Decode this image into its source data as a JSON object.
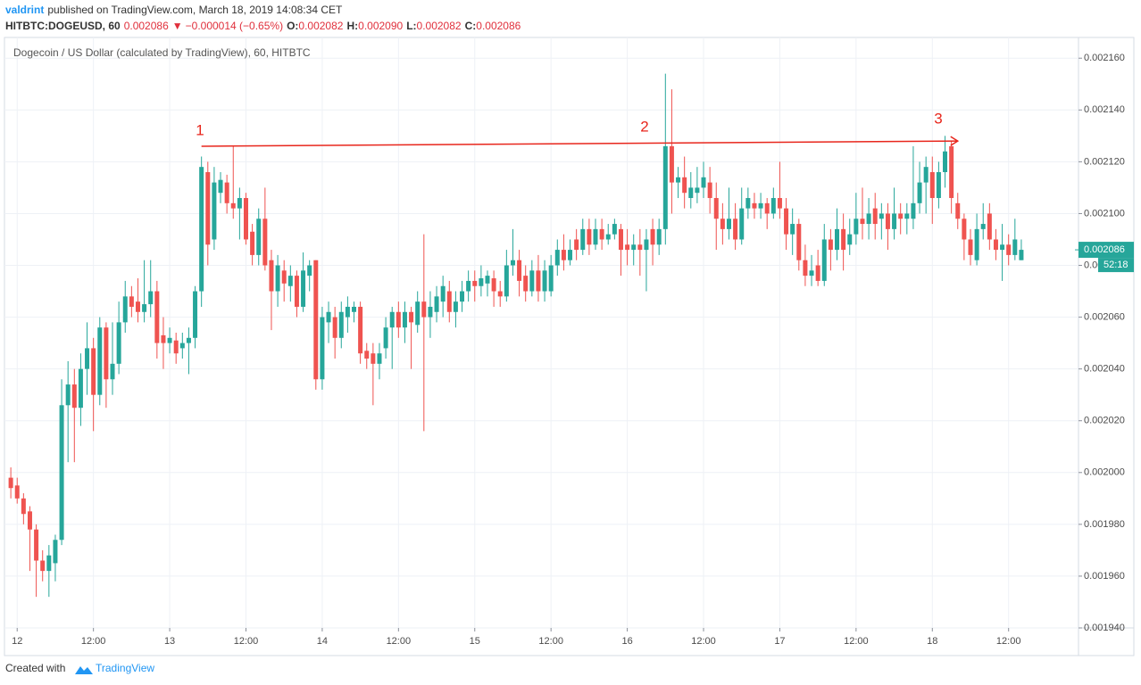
{
  "header": {
    "author": "valdrint",
    "published": "published on TradingView.com, March 18, 2019 14:08:34 CET",
    "symbol": "HITBTC:DOGEUSD, 60",
    "price": "0.002086",
    "arrow": "▼",
    "change": "−0.000014 (−0.65%)",
    "quote": [
      [
        "O:",
        "0.002082"
      ],
      [
        "H:",
        "0.002090"
      ],
      [
        "L:",
        "0.002082"
      ],
      [
        "C:",
        "0.002086"
      ]
    ]
  },
  "footer": {
    "created": "Created with",
    "brand": "TradingView"
  },
  "chart_data": {
    "type": "candlestick",
    "title": "Dogecoin / US Dollar (calculated by TradingView), 60, HITBTC",
    "up_color": "#26a69a",
    "down_color": "#ef5350",
    "grid": true,
    "xlim": [
      -1,
      168
    ],
    "xticks": [
      {
        "value": 1,
        "label": "12"
      },
      {
        "value": 13,
        "label": "12:00"
      },
      {
        "value": 25,
        "label": "13"
      },
      {
        "value": 37,
        "label": "12:00"
      },
      {
        "value": 49,
        "label": "14"
      },
      {
        "value": 61,
        "label": "12:00"
      },
      {
        "value": 73,
        "label": "15"
      },
      {
        "value": 85,
        "label": "12:00"
      },
      {
        "value": 97,
        "label": "16"
      },
      {
        "value": 109,
        "label": "12:00"
      },
      {
        "value": 121,
        "label": "17"
      },
      {
        "value": 133,
        "label": "12:00"
      },
      {
        "value": 145,
        "label": "18"
      },
      {
        "value": 157,
        "label": "12:00"
      }
    ],
    "ylim": [
      0.00194,
      0.002168
    ],
    "yticks": [
      {
        "value": 0.00194,
        "label": "0.001940"
      },
      {
        "value": 0.00196,
        "label": "0.001960"
      },
      {
        "value": 0.00198,
        "label": "0.001980"
      },
      {
        "value": 0.002,
        "label": "0.002000"
      },
      {
        "value": 0.00202,
        "label": "0.002020"
      },
      {
        "value": 0.00204,
        "label": "0.002040"
      },
      {
        "value": 0.00206,
        "label": "0.002060"
      },
      {
        "value": 0.00208,
        "label": "0.002080"
      },
      {
        "value": 0.0021,
        "label": "0.002100"
      },
      {
        "value": 0.00212,
        "label": "0.002120"
      },
      {
        "value": 0.00214,
        "label": "0.002140"
      },
      {
        "value": 0.00216,
        "label": "0.002160"
      }
    ],
    "last_price": {
      "value": 0.002086,
      "label": "0.002086"
    },
    "countdown": "52:18",
    "trendline": {
      "color": "#e8261c",
      "from": [
        30,
        0.002126
      ],
      "to": [
        149,
        0.002128
      ]
    },
    "annotations": [
      "1",
      "2",
      "3"
    ],
    "ohlc": [
      [
        0.001998,
        0.002002,
        0.00199,
        0.001994
      ],
      [
        0.001995,
        0.001998,
        0.001988,
        0.00199
      ],
      [
        0.00199,
        0.001992,
        0.00198,
        0.001984
      ],
      [
        0.001985,
        0.001987,
        0.001962,
        0.001978
      ],
      [
        0.001978,
        0.00198,
        0.001952,
        0.001966
      ],
      [
        0.001966,
        0.00197,
        0.001958,
        0.001962
      ],
      [
        0.001962,
        0.001972,
        0.001952,
        0.001968
      ],
      [
        0.001965,
        0.001976,
        0.001958,
        0.001974
      ],
      [
        0.001974,
        0.002036,
        0.001972,
        0.002026
      ],
      [
        0.002026,
        0.002043,
        0.002004,
        0.002034
      ],
      [
        0.002034,
        0.00204,
        0.002004,
        0.002025
      ],
      [
        0.002025,
        0.002046,
        0.002018,
        0.00204
      ],
      [
        0.00204,
        0.002058,
        0.00203,
        0.002048
      ],
      [
        0.002048,
        0.002052,
        0.002016,
        0.00203
      ],
      [
        0.00203,
        0.00206,
        0.002026,
        0.002056
      ],
      [
        0.002056,
        0.002058,
        0.002025,
        0.002036
      ],
      [
        0.002036,
        0.002058,
        0.00203,
        0.002042
      ],
      [
        0.002042,
        0.002066,
        0.002038,
        0.002058
      ],
      [
        0.002058,
        0.002074,
        0.002054,
        0.002068
      ],
      [
        0.002068,
        0.002072,
        0.00206,
        0.002064
      ],
      [
        0.002066,
        0.002075,
        0.002058,
        0.002062
      ],
      [
        0.002062,
        0.002082,
        0.002058,
        0.002065
      ],
      [
        0.002065,
        0.002082,
        0.00206,
        0.00207
      ],
      [
        0.00207,
        0.002074,
        0.002044,
        0.00205
      ],
      [
        0.002053,
        0.00206,
        0.00204,
        0.00205
      ],
      [
        0.00205,
        0.002056,
        0.002046,
        0.002052
      ],
      [
        0.002051,
        0.002054,
        0.002042,
        0.002046
      ],
      [
        0.002048,
        0.002054,
        0.002044,
        0.00205
      ],
      [
        0.00205,
        0.002056,
        0.002038,
        0.002052
      ],
      [
        0.002052,
        0.002072,
        0.002048,
        0.00207
      ],
      [
        0.00207,
        0.002122,
        0.002064,
        0.002118
      ],
      [
        0.002116,
        0.00212,
        0.00208,
        0.002088
      ],
      [
        0.00209,
        0.002118,
        0.002086,
        0.002112
      ],
      [
        0.002108,
        0.002116,
        0.002104,
        0.002113
      ],
      [
        0.002112,
        0.002115,
        0.0021,
        0.002104
      ],
      [
        0.002104,
        0.002126,
        0.002098,
        0.002102
      ],
      [
        0.002102,
        0.00211,
        0.00209,
        0.002106
      ],
      [
        0.002106,
        0.002108,
        0.002088,
        0.00209
      ],
      [
        0.002093,
        0.002096,
        0.00208,
        0.002084
      ],
      [
        0.002084,
        0.002102,
        0.00208,
        0.002098
      ],
      [
        0.002098,
        0.00211,
        0.002078,
        0.00208
      ],
      [
        0.002082,
        0.002086,
        0.002055,
        0.00207
      ],
      [
        0.00207,
        0.002084,
        0.002064,
        0.00208
      ],
      [
        0.002078,
        0.002082,
        0.002066,
        0.002073
      ],
      [
        0.002072,
        0.00208,
        0.002066,
        0.002076
      ],
      [
        0.002076,
        0.002078,
        0.00206,
        0.002064
      ],
      [
        0.002064,
        0.002085,
        0.002062,
        0.002078
      ],
      [
        0.002076,
        0.002082,
        0.00207,
        0.00208
      ],
      [
        0.002082,
        0.002082,
        0.002032,
        0.002036
      ],
      [
        0.002036,
        0.002064,
        0.002032,
        0.00206
      ],
      [
        0.002058,
        0.002066,
        0.00205,
        0.002062
      ],
      [
        0.00206,
        0.002064,
        0.002044,
        0.002052
      ],
      [
        0.002052,
        0.002066,
        0.002048,
        0.002062
      ],
      [
        0.00206,
        0.002068,
        0.002054,
        0.002064
      ],
      [
        0.002062,
        0.002066,
        0.002058,
        0.002064
      ],
      [
        0.002064,
        0.002066,
        0.002042,
        0.002046
      ],
      [
        0.002047,
        0.00205,
        0.00204,
        0.002044
      ],
      [
        0.002046,
        0.00205,
        0.002026,
        0.002042
      ],
      [
        0.002042,
        0.00205,
        0.002036,
        0.002046
      ],
      [
        0.002048,
        0.00206,
        0.002044,
        0.002056
      ],
      [
        0.002056,
        0.002064,
        0.00204,
        0.002062
      ],
      [
        0.002062,
        0.002066,
        0.002052,
        0.002056
      ],
      [
        0.002056,
        0.002066,
        0.00205,
        0.002062
      ],
      [
        0.002062,
        0.002064,
        0.00204,
        0.002058
      ],
      [
        0.002057,
        0.00207,
        0.002054,
        0.002066
      ],
      [
        0.002066,
        0.002092,
        0.002016,
        0.00206
      ],
      [
        0.00206,
        0.00207,
        0.002052,
        0.002064
      ],
      [
        0.002062,
        0.002072,
        0.002058,
        0.002068
      ],
      [
        0.002066,
        0.002076,
        0.00206,
        0.002072
      ],
      [
        0.00207,
        0.002074,
        0.002058,
        0.002062
      ],
      [
        0.002062,
        0.00207,
        0.002056,
        0.002066
      ],
      [
        0.002066,
        0.002074,
        0.002062,
        0.00207
      ],
      [
        0.00207,
        0.002078,
        0.002066,
        0.002074
      ],
      [
        0.002074,
        0.002078,
        0.002066,
        0.002072
      ],
      [
        0.002072,
        0.00208,
        0.002068,
        0.002075
      ],
      [
        0.002073,
        0.002078,
        0.002068,
        0.002076
      ],
      [
        0.002075,
        0.002078,
        0.002064,
        0.00207
      ],
      [
        0.00207,
        0.002074,
        0.002064,
        0.002068
      ],
      [
        0.002068,
        0.002086,
        0.002066,
        0.00208
      ],
      [
        0.00208,
        0.002094,
        0.002076,
        0.002082
      ],
      [
        0.002082,
        0.002086,
        0.002068,
        0.002074
      ],
      [
        0.002076,
        0.00208,
        0.002066,
        0.00207
      ],
      [
        0.00207,
        0.002082,
        0.002068,
        0.002078
      ],
      [
        0.002078,
        0.002084,
        0.002066,
        0.00207
      ],
      [
        0.00207,
        0.002082,
        0.002066,
        0.002078
      ],
      [
        0.00207,
        0.002084,
        0.002068,
        0.00208
      ],
      [
        0.00208,
        0.00209,
        0.002076,
        0.002086
      ],
      [
        0.002086,
        0.002092,
        0.002078,
        0.002082
      ],
      [
        0.002082,
        0.00209,
        0.00208,
        0.002086
      ],
      [
        0.00209,
        0.002094,
        0.002082,
        0.002086
      ],
      [
        0.002086,
        0.002098,
        0.002084,
        0.002094
      ],
      [
        0.002094,
        0.002098,
        0.002084,
        0.002088
      ],
      [
        0.002088,
        0.002098,
        0.002086,
        0.002094
      ],
      [
        0.002094,
        0.002098,
        0.002086,
        0.00209
      ],
      [
        0.00209,
        0.002096,
        0.002088,
        0.002092
      ],
      [
        0.002092,
        0.002098,
        0.00209,
        0.002096
      ],
      [
        0.002094,
        0.002096,
        0.002076,
        0.002086
      ],
      [
        0.002088,
        0.002094,
        0.00208,
        0.002086
      ],
      [
        0.002086,
        0.002092,
        0.00208,
        0.002088
      ],
      [
        0.002088,
        0.002094,
        0.002076,
        0.002086
      ],
      [
        0.002086,
        0.002094,
        0.00207,
        0.00209
      ],
      [
        0.002094,
        0.002098,
        0.00208,
        0.002088
      ],
      [
        0.002088,
        0.002098,
        0.002084,
        0.002094
      ],
      [
        0.002094,
        0.002154,
        0.002088,
        0.002126
      ],
      [
        0.002126,
        0.002148,
        0.0021,
        0.002112
      ],
      [
        0.002112,
        0.002118,
        0.002106,
        0.002114
      ],
      [
        0.002114,
        0.002122,
        0.002102,
        0.002108
      ],
      [
        0.002106,
        0.002116,
        0.002102,
        0.00211
      ],
      [
        0.002108,
        0.002118,
        0.002104,
        0.00211
      ],
      [
        0.00211,
        0.00212,
        0.002106,
        0.002114
      ],
      [
        0.002112,
        0.002118,
        0.0021,
        0.002106
      ],
      [
        0.002106,
        0.002112,
        0.002086,
        0.002098
      ],
      [
        0.002098,
        0.002104,
        0.002088,
        0.002094
      ],
      [
        0.002094,
        0.00211,
        0.00209,
        0.002098
      ],
      [
        0.002098,
        0.002104,
        0.002086,
        0.00209
      ],
      [
        0.00209,
        0.00211,
        0.002088,
        0.002102
      ],
      [
        0.002102,
        0.00211,
        0.002098,
        0.002106
      ],
      [
        0.002104,
        0.002108,
        0.002098,
        0.002102
      ],
      [
        0.002102,
        0.002108,
        0.002098,
        0.002104
      ],
      [
        0.002104,
        0.002106,
        0.002094,
        0.0021
      ],
      [
        0.0021,
        0.00211,
        0.002098,
        0.002106
      ],
      [
        0.002106,
        0.00212,
        0.002098,
        0.002102
      ],
      [
        0.002102,
        0.002106,
        0.002086,
        0.002092
      ],
      [
        0.002092,
        0.002102,
        0.002084,
        0.002096
      ],
      [
        0.002096,
        0.002098,
        0.002078,
        0.002082
      ],
      [
        0.002082,
        0.002088,
        0.002072,
        0.002076
      ],
      [
        0.002076,
        0.002084,
        0.002072,
        0.002078
      ],
      [
        0.00208,
        0.002086,
        0.002072,
        0.002074
      ],
      [
        0.002074,
        0.002096,
        0.002072,
        0.00209
      ],
      [
        0.00209,
        0.002094,
        0.002078,
        0.002086
      ],
      [
        0.002086,
        0.002102,
        0.002082,
        0.002094
      ],
      [
        0.002094,
        0.0021,
        0.002078,
        0.002086
      ],
      [
        0.002088,
        0.002098,
        0.002084,
        0.002092
      ],
      [
        0.002092,
        0.002108,
        0.002088,
        0.002098
      ],
      [
        0.002098,
        0.00211,
        0.00209,
        0.002096
      ],
      [
        0.002096,
        0.002106,
        0.00209,
        0.0021
      ],
      [
        0.002102,
        0.002108,
        0.00209,
        0.002096
      ],
      [
        0.002098,
        0.002104,
        0.00209,
        0.0021
      ],
      [
        0.0021,
        0.002104,
        0.002086,
        0.002094
      ],
      [
        0.002094,
        0.00211,
        0.00209,
        0.0021
      ],
      [
        0.0021,
        0.002104,
        0.002092,
        0.002098
      ],
      [
        0.002098,
        0.002104,
        0.002092,
        0.0021
      ],
      [
        0.002098,
        0.002126,
        0.002094,
        0.002104
      ],
      [
        0.002104,
        0.00212,
        0.0021,
        0.002112
      ],
      [
        0.002112,
        0.002122,
        0.0021,
        0.002118
      ],
      [
        0.002116,
        0.002122,
        0.002096,
        0.002106
      ],
      [
        0.002106,
        0.00212,
        0.002102,
        0.002116
      ],
      [
        0.002116,
        0.00213,
        0.00211,
        0.002124
      ],
      [
        0.002126,
        0.002128,
        0.0021,
        0.002106
      ],
      [
        0.002104,
        0.002108,
        0.002094,
        0.002098
      ],
      [
        0.002098,
        0.0021,
        0.002082,
        0.00209
      ],
      [
        0.00209,
        0.002094,
        0.00208,
        0.002084
      ],
      [
        0.002082,
        0.0021,
        0.00208,
        0.002094
      ],
      [
        0.002094,
        0.002104,
        0.00209,
        0.002096
      ],
      [
        0.0021,
        0.002104,
        0.002086,
        0.00209
      ],
      [
        0.00209,
        0.002094,
        0.002082,
        0.002086
      ],
      [
        0.002086,
        0.002096,
        0.002074,
        0.002088
      ],
      [
        0.002088,
        0.002092,
        0.00208,
        0.002084
      ],
      [
        0.002084,
        0.002098,
        0.002082,
        0.00209
      ],
      [
        0.002082,
        0.00209,
        0.002082,
        0.002086
      ]
    ]
  }
}
